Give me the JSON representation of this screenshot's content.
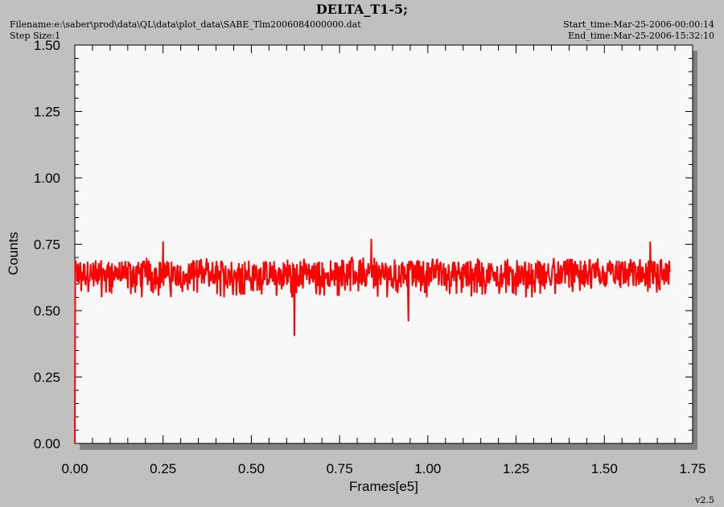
{
  "header": {
    "title": "DELTA_T1-5;",
    "filename": "Filename:e:\\saber\\prod\\data\\QL\\data\\plot_data\\SABE_Tlm2006084000000.dat",
    "step_size": "Step Size:1",
    "start_time": "Start_time:Mar-25-2006-00:00:14",
    "end_time": "End_time:Mar-25-2006-15:32:10"
  },
  "footer": {
    "version": "v2.5"
  },
  "colors": {
    "plot_bg": "#f8f8f8",
    "window_bg": "#c0c0c0",
    "shadow": "#808080",
    "series": "#ff0000"
  },
  "chart_data": {
    "type": "line",
    "title": "DELTA_T1-5;",
    "xlabel": "Frames[e5]",
    "ylabel": "Counts",
    "xlim": [
      0,
      1.75
    ],
    "ylim": [
      0,
      1.5
    ],
    "x_ticks": [
      "0.00",
      "0.25",
      "0.50",
      "0.75",
      "1.00",
      "1.25",
      "1.50",
      "1.75"
    ],
    "y_ticks": [
      "0.00",
      "0.25",
      "0.50",
      "0.75",
      "1.00",
      "1.25",
      "1.50"
    ],
    "grid": false,
    "series": [
      {
        "color": "#ff0000",
        "x_range": [
          0,
          1.685
        ],
        "band_min": 0.55,
        "band_max": 0.7,
        "typical": 0.64,
        "outliers": [
          {
            "x": 0.0,
            "y": 0.0
          },
          {
            "x": 0.25,
            "y": 0.76
          },
          {
            "x": 0.622,
            "y": 0.405
          },
          {
            "x": 0.84,
            "y": 0.77
          },
          {
            "x": 0.945,
            "y": 0.46
          },
          {
            "x": 1.63,
            "y": 0.76
          }
        ]
      }
    ]
  }
}
